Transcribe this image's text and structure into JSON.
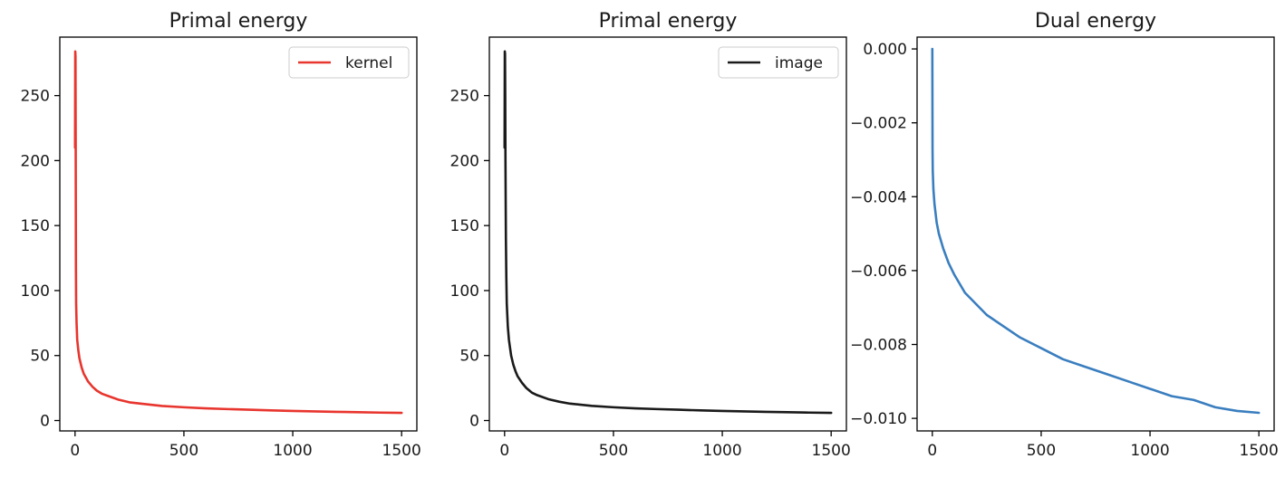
{
  "chart_data": [
    {
      "type": "line",
      "title": "Primal energy",
      "xlabel": "",
      "ylabel": "",
      "xlim": [
        -70,
        1570
      ],
      "ylim": [
        -8,
        295
      ],
      "xticks": [
        0,
        500,
        1000,
        1500
      ],
      "yticks": [
        0,
        50,
        100,
        150,
        200,
        250
      ],
      "xtick_labels": [
        "0",
        "500",
        "1000",
        "1500"
      ],
      "ytick_labels": [
        "0",
        "50",
        "100",
        "150",
        "200",
        "250"
      ],
      "grid": false,
      "legend": {
        "placement": "upper right"
      },
      "series": [
        {
          "name": "kernel",
          "color": "#e8352e",
          "x": [
            0,
            1,
            2,
            3,
            4,
            5,
            7,
            10,
            15,
            20,
            30,
            40,
            50,
            60,
            80,
            100,
            125,
            150,
            200,
            250,
            300,
            400,
            500,
            600,
            700,
            800,
            900,
            1000,
            1100,
            1200,
            1300,
            1400,
            1500
          ],
          "y": [
            210,
            284,
            280,
            210,
            120,
            90,
            75,
            62,
            54,
            48,
            41,
            36,
            33,
            30,
            26,
            23,
            20.5,
            19,
            16,
            14,
            13,
            11.2,
            10.2,
            9.4,
            8.8,
            8.3,
            7.8,
            7.4,
            7.0,
            6.7,
            6.4,
            6.1,
            5.9
          ]
        }
      ]
    },
    {
      "type": "line",
      "title": "Primal energy",
      "xlabel": "",
      "ylabel": "",
      "xlim": [
        -70,
        1570
      ],
      "ylim": [
        -8,
        295
      ],
      "xticks": [
        0,
        500,
        1000,
        1500
      ],
      "yticks": [
        0,
        50,
        100,
        150,
        200,
        250
      ],
      "xtick_labels": [
        "0",
        "500",
        "1000",
        "1500"
      ],
      "ytick_labels": [
        "0",
        "50",
        "100",
        "150",
        "200",
        "250"
      ],
      "grid": false,
      "legend": {
        "placement": "upper right"
      },
      "series": [
        {
          "name": "image",
          "color": "#1a1a1a",
          "x": [
            0,
            1,
            2,
            3,
            4,
            6,
            8,
            10,
            15,
            20,
            30,
            40,
            50,
            60,
            80,
            100,
            125,
            150,
            200,
            250,
            300,
            400,
            500,
            600,
            700,
            800,
            900,
            1000,
            1100,
            1200,
            1300,
            1400,
            1500
          ],
          "y": [
            210,
            284,
            282,
            250,
            200,
            140,
            110,
            90,
            72,
            62,
            50,
            43,
            38,
            34,
            29,
            25,
            21.5,
            19.5,
            16.5,
            14.5,
            13,
            11.3,
            10.2,
            9.4,
            8.8,
            8.3,
            7.8,
            7.4,
            7.0,
            6.7,
            6.4,
            6.1,
            5.9
          ]
        }
      ]
    },
    {
      "type": "line",
      "title": "Dual energy",
      "xlabel": "",
      "ylabel": "",
      "xlim": [
        -70,
        1570
      ],
      "ylim": [
        -0.01034,
        0.00032
      ],
      "xticks": [
        0,
        500,
        1000,
        1500
      ],
      "yticks": [
        0.0,
        -0.002,
        -0.004,
        -0.006,
        -0.008,
        -0.01
      ],
      "xtick_labels": [
        "0",
        "500",
        "1000",
        "1500"
      ],
      "ytick_labels": [
        "0.000",
        "−0.002",
        "−0.004",
        "−0.006",
        "−0.008",
        "−0.010"
      ],
      "grid": false,
      "series": [
        {
          "color": "#3a7ebf",
          "x": [
            0,
            1,
            2,
            5,
            10,
            20,
            30,
            50,
            75,
            100,
            150,
            200,
            250,
            300,
            400,
            500,
            600,
            700,
            800,
            900,
            1000,
            1100,
            1200,
            1300,
            1400,
            1500
          ],
          "y": [
            0.0,
            -0.0027,
            -0.0033,
            -0.0038,
            -0.0042,
            -0.0047,
            -0.005,
            -0.0054,
            -0.0058,
            -0.0061,
            -0.0066,
            -0.0069,
            -0.0072,
            -0.0074,
            -0.0078,
            -0.0081,
            -0.0084,
            -0.0086,
            -0.0088,
            -0.009,
            -0.0092,
            -0.0094,
            -0.0095,
            -0.0097,
            -0.0098,
            -0.00985
          ]
        }
      ]
    }
  ]
}
